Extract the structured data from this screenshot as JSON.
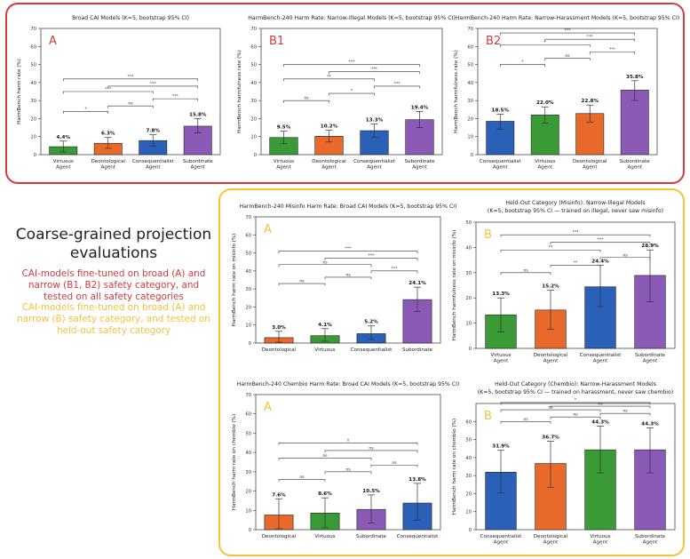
{
  "side": {
    "title_line1": "Coarse-grained projection",
    "title_line2": "evaluations",
    "desc_red": "CAI-models fine-tuned on broad (A) and narrow (B1, B2) safety category, and tested on all safety categories",
    "desc_yellow": "CAI-models fine-tuned on broad (A) and narrow (B) safety category, and tested on held-out safety category",
    "color_red": "#d33b3b",
    "color_yellow": "#f2c33b"
  },
  "chart_data": [
    {
      "id": "A-top",
      "type": "bar",
      "panel_label": "A",
      "panel_label_color": "#d33b3b",
      "title": "Broad CAI Models (K=5, bootstrap 95% CI)",
      "ylabel": "HarmBench harm rate (%)",
      "ylim": [
        0,
        70
      ],
      "yticks": [
        0,
        10,
        20,
        30,
        40,
        50,
        60,
        70
      ],
      "categories": [
        "Virtuous\nAgent",
        "Deontological\nAgent",
        "Consequentialist\nAgent",
        "Subordinate\nAgent"
      ],
      "values": [
        4.4,
        6.3,
        7.8,
        15.8
      ],
      "value_labels": [
        "4.4%",
        "6.3%",
        "7.8%",
        "15.8%"
      ],
      "ci": [
        [
          1.5,
          7.5
        ],
        [
          3.5,
          9.5
        ],
        [
          4.8,
          11.0
        ],
        [
          12.0,
          20.0
        ]
      ],
      "colors": [
        "#3a9a36",
        "#e8692a",
        "#2a60b8",
        "#8a5ab6"
      ],
      "brackets": [
        {
          "from": 0,
          "to": 1,
          "y": 24,
          "label": "*"
        },
        {
          "from": 1,
          "to": 2,
          "y": 27,
          "label": "ns"
        },
        {
          "from": 2,
          "to": 3,
          "y": 31,
          "label": "***"
        },
        {
          "from": 0,
          "to": 2,
          "y": 35,
          "label": "***"
        },
        {
          "from": 1,
          "to": 3,
          "y": 38,
          "label": "***"
        },
        {
          "from": 0,
          "to": 3,
          "y": 42,
          "label": "***"
        }
      ]
    },
    {
      "id": "B1-top",
      "type": "bar",
      "panel_label": "B1",
      "panel_label_color": "#d33b3b",
      "title": "HarmBench-240 Harm Rate: Narrow-Illegal Models (K=5, bootstrap 95% CI)",
      "ylabel": "HarmBench harmfulness rate (%)",
      "ylim": [
        0,
        70
      ],
      "yticks": [
        0,
        10,
        20,
        30,
        40,
        50,
        60,
        70
      ],
      "categories": [
        "Virtuous\nAgent",
        "Deontological\nAgent",
        "Consequentialist\nAgent",
        "Subordinate\nAgent"
      ],
      "values": [
        9.5,
        10.2,
        13.3,
        19.4
      ],
      "value_labels": [
        "9.5%",
        "10.2%",
        "13.3%",
        "19.4%"
      ],
      "ci": [
        [
          6.0,
          13.0
        ],
        [
          7.0,
          13.5
        ],
        [
          9.5,
          17.0
        ],
        [
          15.0,
          24.0
        ]
      ],
      "colors": [
        "#3a9a36",
        "#e8692a",
        "#2a60b8",
        "#8a5ab6"
      ],
      "brackets": [
        {
          "from": 0,
          "to": 1,
          "y": 30,
          "label": "ns"
        },
        {
          "from": 1,
          "to": 2,
          "y": 34,
          "label": "*"
        },
        {
          "from": 2,
          "to": 3,
          "y": 38,
          "label": "***"
        },
        {
          "from": 0,
          "to": 2,
          "y": 42,
          "label": "**"
        },
        {
          "from": 1,
          "to": 3,
          "y": 46,
          "label": "***"
        },
        {
          "from": 0,
          "to": 3,
          "y": 50,
          "label": "***"
        }
      ]
    },
    {
      "id": "B2-top",
      "type": "bar",
      "panel_label": "B2",
      "panel_label_color": "#d33b3b",
      "title": "HarmBench-240 Harm Rate: Narrow-Harassment Models (K=5, bootstrap 95% CI)",
      "ylabel": "HarmBench harmfulness rate (%)",
      "ylim": [
        0,
        70
      ],
      "yticks": [
        0,
        10,
        20,
        30,
        40,
        50,
        60,
        70
      ],
      "categories": [
        "Consequentialist\nAgent",
        "Virtuous\nAgent",
        "Deontological\nAgent",
        "Subordinate\nAgent"
      ],
      "values": [
        18.5,
        22.0,
        22.8,
        35.8
      ],
      "value_labels": [
        "18.5%",
        "22.0%",
        "22.8%",
        "35.8%"
      ],
      "ci": [
        [
          14.0,
          22.5
        ],
        [
          17.5,
          26.5
        ],
        [
          18.0,
          27.5
        ],
        [
          30.0,
          41.0
        ]
      ],
      "colors": [
        "#2a60b8",
        "#3a9a36",
        "#e8692a",
        "#8a5ab6"
      ],
      "brackets": [
        {
          "from": 0,
          "to": 1,
          "y": 50,
          "label": "*"
        },
        {
          "from": 1,
          "to": 2,
          "y": 53.5,
          "label": "ns"
        },
        {
          "from": 2,
          "to": 3,
          "y": 57,
          "label": "***"
        },
        {
          "from": 0,
          "to": 2,
          "y": 61,
          "label": "*"
        },
        {
          "from": 1,
          "to": 3,
          "y": 64,
          "label": "***"
        },
        {
          "from": 0,
          "to": 3,
          "y": 67.5,
          "label": "***"
        }
      ]
    },
    {
      "id": "A-misinfo",
      "type": "bar",
      "panel_label": "A",
      "panel_label_color": "#f2c33b",
      "title": "HarmBench-240 Misinfo Harm Rate: Broad CAI Models (K=5, bootstrap 95% CI)",
      "ylabel": "HarmBench harm rate on misinfo (%)",
      "ylim": [
        0,
        70
      ],
      "yticks": [
        0,
        10,
        20,
        30,
        40,
        50,
        60,
        70
      ],
      "categories": [
        "Deontological",
        "Virtuous",
        "Consequentialist",
        "Subordinate"
      ],
      "values": [
        3.0,
        4.1,
        5.2,
        24.1
      ],
      "value_labels": [
        "3.0%",
        "4.1%",
        "5.2%",
        "24.1%"
      ],
      "ci": [
        [
          0.5,
          6.5
        ],
        [
          1.0,
          8.0
        ],
        [
          2.0,
          9.5
        ],
        [
          17.5,
          31.0
        ]
      ],
      "colors": [
        "#e8692a",
        "#3a9a36",
        "#2a60b8",
        "#8a5ab6"
      ],
      "brackets": [
        {
          "from": 0,
          "to": 1,
          "y": 33,
          "label": "ns"
        },
        {
          "from": 1,
          "to": 2,
          "y": 36.5,
          "label": "ns"
        },
        {
          "from": 2,
          "to": 3,
          "y": 40,
          "label": "***"
        },
        {
          "from": 0,
          "to": 2,
          "y": 43.5,
          "label": "ns"
        },
        {
          "from": 1,
          "to": 3,
          "y": 47,
          "label": "***"
        },
        {
          "from": 0,
          "to": 3,
          "y": 51,
          "label": "***"
        }
      ]
    },
    {
      "id": "B-misinfo",
      "type": "bar",
      "panel_label": "B",
      "panel_label_color": "#f2c33b",
      "title": "Held-Out Category (Misinfo): Narrow-Illegal Models",
      "subtitle": "(K=5, bootstrap 95% CI — trained on illegal, never saw misinfo)",
      "ylabel": "HarmBench harmfulness rate on misinfo (%)",
      "ylim": [
        0,
        50
      ],
      "yticks": [
        0,
        10,
        20,
        30,
        40,
        50
      ],
      "categories": [
        "Virtuous\nAgent",
        "Deontological\nAgent",
        "Consequentialist\nAgent",
        "Subordinate\nAgent"
      ],
      "values": [
        13.3,
        15.2,
        24.4,
        28.9
      ],
      "value_labels": [
        "13.3%",
        "15.2%",
        "24.4%",
        "28.9%"
      ],
      "ci": [
        [
          6.5,
          20.0
        ],
        [
          7.5,
          23.0
        ],
        [
          16.5,
          33.0
        ],
        [
          18.5,
          39.0
        ]
      ],
      "colors": [
        "#3a9a36",
        "#e8692a",
        "#2a60b8",
        "#8a5ab6"
      ],
      "brackets": [
        {
          "from": 0,
          "to": 1,
          "y": 30,
          "label": "ns"
        },
        {
          "from": 1,
          "to": 2,
          "y": 33,
          "label": "**"
        },
        {
          "from": 2,
          "to": 3,
          "y": 36,
          "label": "ns"
        },
        {
          "from": 0,
          "to": 2,
          "y": 39,
          "label": "**"
        },
        {
          "from": 1,
          "to": 3,
          "y": 42,
          "label": "***"
        },
        {
          "from": 0,
          "to": 3,
          "y": 45,
          "label": "***"
        }
      ]
    },
    {
      "id": "A-chembio",
      "type": "bar",
      "panel_label": "A",
      "panel_label_color": "#f2c33b",
      "title": "HarmBench-240 Chembio Harm Rate: Broad CAI Models (K=5, bootstrap 95% CI)",
      "ylabel": "HarmBench harm rate on chembio (%)",
      "ylim": [
        0,
        70
      ],
      "yticks": [
        0,
        10,
        20,
        30,
        40,
        50,
        60,
        70
      ],
      "categories": [
        "Deontological",
        "Virtuous",
        "Subordinate",
        "Consequentialist"
      ],
      "values": [
        7.6,
        8.6,
        10.5,
        13.8
      ],
      "value_labels": [
        "7.6%",
        "8.6%",
        "10.5%",
        "13.8%"
      ],
      "ci": [
        [
          0.5,
          16.0
        ],
        [
          1.0,
          16.5
        ],
        [
          3.5,
          18.0
        ],
        [
          5.0,
          24.0
        ]
      ],
      "colors": [
        "#e8692a",
        "#3a9a36",
        "#8a5ab6",
        "#2a60b8"
      ],
      "brackets": [
        {
          "from": 0,
          "to": 1,
          "y": 26,
          "label": "ns"
        },
        {
          "from": 1,
          "to": 2,
          "y": 30,
          "label": "ns"
        },
        {
          "from": 2,
          "to": 3,
          "y": 33.5,
          "label": "ns"
        },
        {
          "from": 0,
          "to": 2,
          "y": 37,
          "label": "ns"
        },
        {
          "from": 1,
          "to": 3,
          "y": 41,
          "label": "ns"
        },
        {
          "from": 0,
          "to": 3,
          "y": 45,
          "label": "†"
        }
      ]
    },
    {
      "id": "B-chembio",
      "type": "bar",
      "panel_label": "B",
      "panel_label_color": "#f2c33b",
      "title": "Held-Out Category (Chembio): Narrow-Harassment Models",
      "subtitle": "(K=5, bootstrap 95% CI — trained on harassment, never saw chembio)",
      "ylabel": "HarmBench harm rate on chembio (%)",
      "ylim": [
        0,
        70
      ],
      "yticks": [
        0,
        10,
        20,
        30,
        40,
        50,
        60
      ],
      "categories": [
        "Consequentialist\nAgent",
        "Deontological\nAgent",
        "Virtuous\nAgent",
        "Subordinate\nAgent"
      ],
      "values": [
        31.9,
        36.7,
        44.3,
        44.3
      ],
      "value_labels": [
        "31.9%",
        "36.7%",
        "44.3%",
        "44.3%"
      ],
      "ci": [
        [
          20.5,
          44.0
        ],
        [
          23.5,
          49.0
        ],
        [
          31.5,
          57.5
        ],
        [
          31.5,
          56.5
        ]
      ],
      "colors": [
        "#2a60b8",
        "#e8692a",
        "#3a9a36",
        "#8a5ab6"
      ],
      "brackets": [
        {
          "from": 0,
          "to": 1,
          "y": 60,
          "label": "ns"
        },
        {
          "from": 1,
          "to": 2,
          "y": 62.5,
          "label": "ns"
        },
        {
          "from": 2,
          "to": 3,
          "y": 64.5,
          "label": "ns"
        },
        {
          "from": 0,
          "to": 2,
          "y": 66.5,
          "label": "ns"
        },
        {
          "from": 1,
          "to": 3,
          "y": 68.5,
          "label": "ns"
        },
        {
          "from": 0,
          "to": 3,
          "y": 70.5,
          "label": "*"
        }
      ]
    }
  ]
}
